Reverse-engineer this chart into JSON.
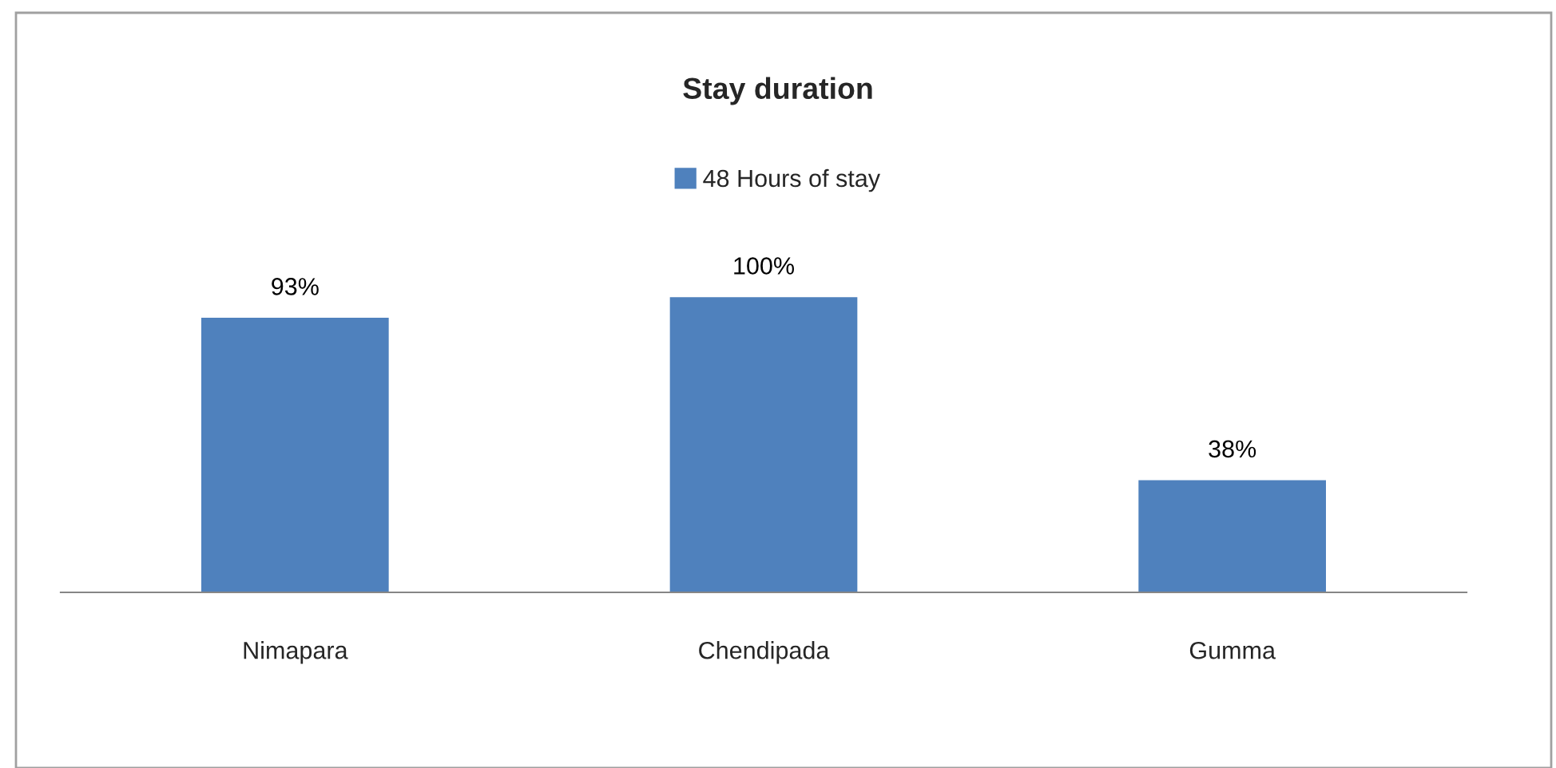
{
  "chart_data": {
    "type": "bar",
    "title": "Stay duration",
    "categories": [
      "Nimapara",
      "Chendipada",
      "Gumma"
    ],
    "series": [
      {
        "name": "48 Hours of stay",
        "color": "#4f81bd",
        "values": [
          93,
          100,
          38
        ],
        "value_labels": [
          "93%",
          "100%",
          "38%"
        ]
      }
    ],
    "legend": "top",
    "grid": false
  }
}
